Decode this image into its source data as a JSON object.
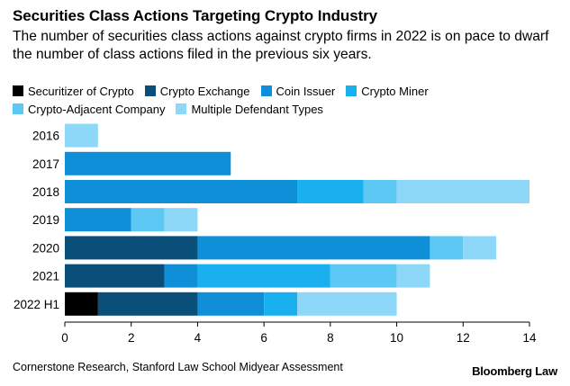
{
  "header": {
    "title": "Securities Class Actions Targeting Crypto Industry",
    "subtitle": "The number of securities class actions against crypto firms in 2022 is on pace to dwarf the number of class actions filed in the previous six years."
  },
  "footer": {
    "source": "Cornerstone Research, Stanford Law School Midyear Assessment",
    "brand": "Bloomberg Law"
  },
  "chart_data": {
    "type": "bar",
    "orientation": "horizontal",
    "stacked": true,
    "categories": [
      "2016",
      "2017",
      "2018",
      "2019",
      "2020",
      "2021",
      "2022 H1"
    ],
    "series": [
      {
        "name": "Securitizer of Crypto",
        "color": "#000000",
        "values": [
          0,
          0,
          0,
          0,
          0,
          0,
          1
        ]
      },
      {
        "name": "Crypto Exchange",
        "color": "#0a4f7a",
        "values": [
          0,
          0,
          0,
          0,
          4,
          3,
          3
        ]
      },
      {
        "name": "Coin Issuer",
        "color": "#0f8fd8",
        "values": [
          0,
          5,
          7,
          2,
          7,
          1,
          2
        ]
      },
      {
        "name": "Crypto Miner",
        "color": "#1ab0f0",
        "values": [
          0,
          0,
          2,
          0,
          0,
          4,
          1
        ]
      },
      {
        "name": "Crypto-Adjacent Company",
        "color": "#5ec8f5",
        "values": [
          0,
          0,
          1,
          1,
          1,
          2,
          0
        ]
      },
      {
        "name": "Multiple Defendant Types",
        "color": "#8dd8f8",
        "values": [
          1,
          0,
          4,
          1,
          1,
          1,
          3
        ]
      }
    ],
    "xlim": [
      0,
      14
    ],
    "xticks": [
      "0",
      "2",
      "4",
      "6",
      "8",
      "10",
      "12",
      "14"
    ],
    "legend_position": "top-left",
    "grid": false
  }
}
